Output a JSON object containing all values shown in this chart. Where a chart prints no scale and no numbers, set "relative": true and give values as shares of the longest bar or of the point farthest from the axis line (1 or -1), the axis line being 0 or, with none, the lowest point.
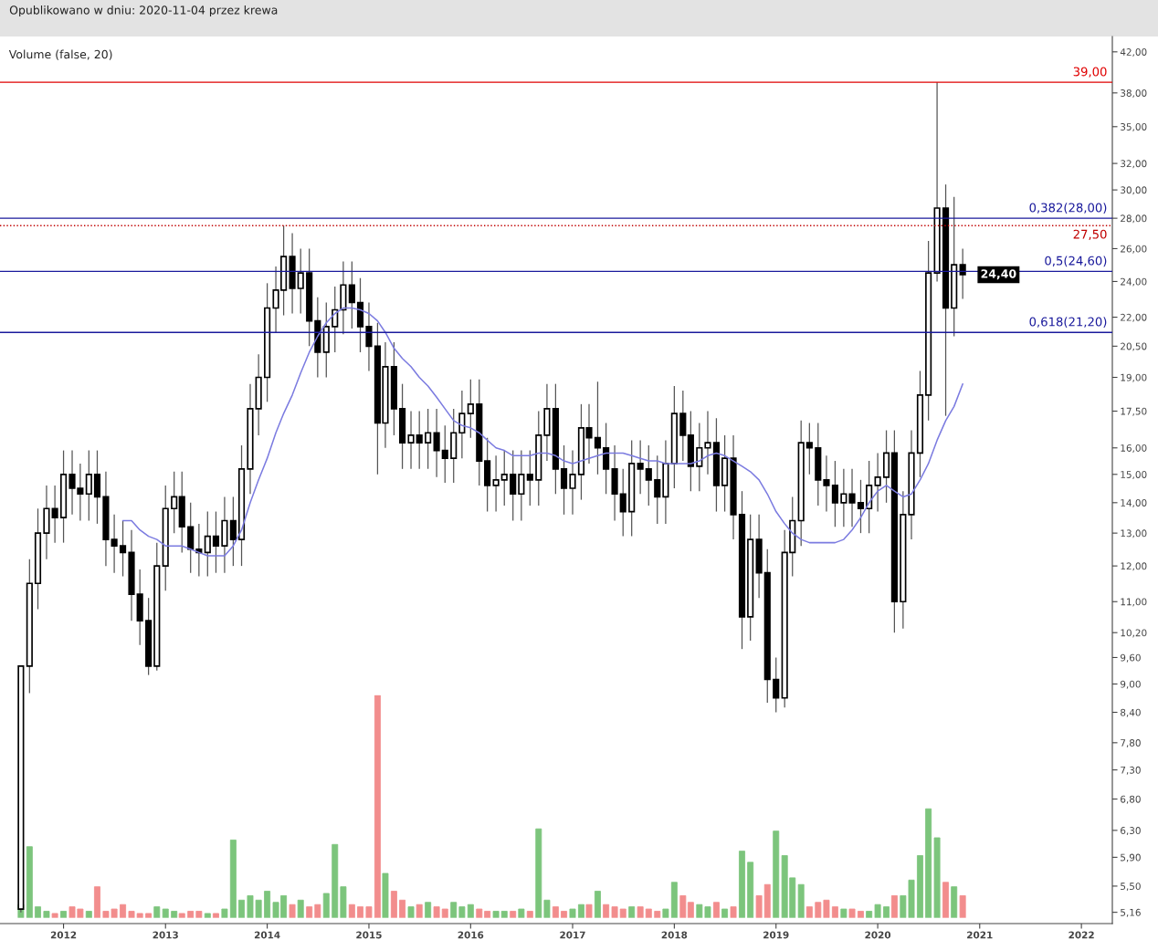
{
  "chart_data": [
    {
      "type": "candlestick",
      "title": "Opublikowano w dniu: 2020-11-04 przez krewa",
      "annotations": [
        "Volume (false, 20)",
        {
          "text": "24,40",
          "x": "2020-11",
          "y": 24.4
        }
      ],
      "x": [
        "2011-08",
        "2011-09",
        "2011-10",
        "2011-11",
        "2011-12",
        "2012-01",
        "2012-02",
        "2012-03",
        "2012-04",
        "2012-05",
        "2012-06",
        "2012-07",
        "2012-08",
        "2012-09",
        "2012-10",
        "2012-11",
        "2012-12",
        "2013-01",
        "2013-02",
        "2013-03",
        "2013-04",
        "2013-05",
        "2013-06",
        "2013-07",
        "2013-08",
        "2013-09",
        "2013-10",
        "2013-11",
        "2013-12",
        "2014-01",
        "2014-02",
        "2014-03",
        "2014-04",
        "2014-05",
        "2014-06",
        "2014-07",
        "2014-08",
        "2014-09",
        "2014-10",
        "2014-11",
        "2014-12",
        "2015-01",
        "2015-02",
        "2015-03",
        "2015-04",
        "2015-05",
        "2015-06",
        "2015-07",
        "2015-08",
        "2015-09",
        "2015-10",
        "2015-11",
        "2015-12",
        "2016-01",
        "2016-02",
        "2016-03",
        "2016-04",
        "2016-05",
        "2016-06",
        "2016-07",
        "2016-08",
        "2016-09",
        "2016-10",
        "2016-11",
        "2016-12",
        "2017-01",
        "2017-02",
        "2017-03",
        "2017-04",
        "2017-05",
        "2017-06",
        "2017-07",
        "2017-08",
        "2017-09",
        "2017-10",
        "2017-11",
        "2017-12",
        "2018-01",
        "2018-02",
        "2018-03",
        "2018-04",
        "2018-05",
        "2018-06",
        "2018-07",
        "2018-08",
        "2018-09",
        "2018-10",
        "2018-11",
        "2018-12",
        "2019-01",
        "2019-02",
        "2019-03",
        "2019-04",
        "2019-05",
        "2019-06",
        "2019-07",
        "2019-08",
        "2019-09",
        "2019-10",
        "2019-11",
        "2019-12",
        "2020-01",
        "2020-02",
        "2020-03",
        "2020-04",
        "2020-05",
        "2020-06",
        "2020-07",
        "2020-08",
        "2020-09",
        "2020-10",
        "2020-11"
      ],
      "ohlc": [
        [
          5.2,
          9.4,
          5.16,
          9.4
        ],
        [
          9.4,
          12.2,
          8.8,
          11.5
        ],
        [
          11.5,
          13.8,
          10.8,
          13.0
        ],
        [
          13.0,
          14.6,
          12.2,
          13.8
        ],
        [
          13.8,
          14.6,
          12.7,
          13.5
        ],
        [
          13.5,
          15.9,
          12.7,
          15.0
        ],
        [
          15.0,
          15.9,
          13.6,
          14.5
        ],
        [
          14.5,
          15.4,
          13.4,
          14.3
        ],
        [
          14.3,
          15.9,
          13.4,
          15.0
        ],
        [
          15.0,
          15.9,
          13.3,
          14.2
        ],
        [
          14.2,
          15.1,
          12.0,
          12.8
        ],
        [
          12.8,
          13.6,
          11.8,
          12.6
        ],
        [
          12.6,
          13.4,
          11.7,
          12.4
        ],
        [
          12.4,
          13.1,
          10.5,
          11.2
        ],
        [
          11.2,
          11.9,
          9.9,
          10.5
        ],
        [
          10.5,
          11.1,
          9.2,
          9.4
        ],
        [
          9.4,
          12.7,
          9.3,
          12.0
        ],
        [
          12.0,
          14.6,
          11.3,
          13.8
        ],
        [
          13.8,
          15.1,
          13.0,
          14.2
        ],
        [
          14.2,
          15.1,
          12.4,
          13.2
        ],
        [
          13.2,
          14.0,
          11.8,
          12.5
        ],
        [
          12.5,
          13.3,
          11.7,
          12.4
        ],
        [
          12.4,
          13.7,
          11.7,
          12.9
        ],
        [
          12.9,
          13.7,
          11.8,
          12.6
        ],
        [
          12.6,
          14.2,
          11.8,
          13.4
        ],
        [
          13.4,
          14.2,
          12.0,
          12.8
        ],
        [
          12.8,
          16.1,
          12.0,
          15.2
        ],
        [
          15.2,
          18.7,
          14.3,
          17.6
        ],
        [
          17.6,
          20.1,
          16.5,
          19.0
        ],
        [
          19.0,
          23.9,
          17.9,
          22.5
        ],
        [
          22.5,
          24.9,
          21.2,
          23.5
        ],
        [
          23.5,
          27.5,
          22.1,
          25.5
        ],
        [
          25.5,
          27.0,
          22.2,
          23.6
        ],
        [
          23.6,
          26.0,
          22.2,
          24.5
        ],
        [
          24.5,
          26.0,
          20.5,
          21.8
        ],
        [
          21.8,
          23.1,
          19.0,
          20.2
        ],
        [
          20.2,
          22.8,
          19.0,
          21.5
        ],
        [
          21.5,
          23.7,
          20.2,
          22.4
        ],
        [
          22.4,
          25.2,
          21.1,
          23.8
        ],
        [
          23.8,
          25.2,
          21.4,
          22.8
        ],
        [
          22.8,
          24.2,
          20.2,
          21.5
        ],
        [
          21.5,
          22.8,
          19.3,
          20.5
        ],
        [
          20.5,
          21.7,
          15.0,
          17.0
        ],
        [
          17.0,
          20.7,
          16.0,
          19.5
        ],
        [
          19.5,
          20.7,
          16.5,
          17.6
        ],
        [
          17.6,
          18.7,
          15.2,
          16.2
        ],
        [
          16.2,
          17.5,
          15.2,
          16.5
        ],
        [
          16.5,
          17.5,
          15.2,
          16.2
        ],
        [
          16.2,
          17.6,
          15.2,
          16.6
        ],
        [
          16.6,
          17.6,
          14.9,
          15.9
        ],
        [
          15.9,
          16.9,
          14.7,
          15.6
        ],
        [
          15.6,
          17.6,
          14.7,
          16.6
        ],
        [
          16.6,
          18.4,
          15.6,
          17.4
        ],
        [
          17.4,
          18.9,
          16.4,
          17.8
        ],
        [
          17.8,
          18.9,
          14.6,
          15.5
        ],
        [
          15.5,
          16.4,
          13.7,
          14.6
        ],
        [
          14.6,
          15.7,
          13.7,
          14.8
        ],
        [
          14.8,
          15.9,
          13.9,
          15.0
        ],
        [
          15.0,
          15.9,
          13.4,
          14.3
        ],
        [
          14.3,
          15.9,
          13.4,
          15.0
        ],
        [
          15.0,
          15.9,
          13.9,
          14.8
        ],
        [
          14.8,
          17.5,
          13.9,
          16.5
        ],
        [
          16.5,
          18.7,
          15.5,
          17.6
        ],
        [
          17.6,
          18.7,
          14.3,
          15.2
        ],
        [
          15.2,
          16.1,
          13.6,
          14.5
        ],
        [
          14.5,
          15.9,
          13.6,
          15.0
        ],
        [
          15.0,
          17.8,
          14.1,
          16.8
        ],
        [
          16.8,
          17.8,
          15.4,
          16.4
        ],
        [
          16.4,
          18.8,
          15.0,
          16.0
        ],
        [
          16.0,
          17.0,
          14.3,
          15.2
        ],
        [
          15.2,
          16.1,
          13.4,
          14.3
        ],
        [
          14.3,
          15.2,
          12.9,
          13.7
        ],
        [
          13.7,
          16.3,
          12.9,
          15.4
        ],
        [
          15.4,
          16.3,
          14.3,
          15.2
        ],
        [
          15.2,
          16.1,
          13.9,
          14.8
        ],
        [
          14.8,
          15.7,
          13.3,
          14.2
        ],
        [
          14.2,
          16.3,
          13.3,
          15.4
        ],
        [
          15.4,
          18.6,
          14.5,
          17.4
        ],
        [
          17.4,
          18.4,
          15.5,
          16.5
        ],
        [
          16.5,
          17.5,
          14.4,
          15.3
        ],
        [
          15.3,
          17.0,
          14.4,
          16.0
        ],
        [
          16.0,
          17.5,
          15.0,
          16.2
        ],
        [
          16.2,
          17.2,
          13.7,
          14.6
        ],
        [
          14.6,
          16.5,
          13.7,
          15.6
        ],
        [
          15.6,
          16.5,
          12.8,
          13.6
        ],
        [
          13.6,
          14.4,
          9.8,
          10.6
        ],
        [
          10.6,
          13.6,
          10.0,
          12.8
        ],
        [
          12.8,
          13.6,
          11.1,
          11.8
        ],
        [
          11.8,
          12.5,
          8.6,
          9.1
        ],
        [
          9.1,
          9.6,
          8.4,
          8.7
        ],
        [
          8.7,
          13.1,
          8.5,
          12.4
        ],
        [
          12.4,
          14.2,
          11.7,
          13.4
        ],
        [
          13.4,
          17.1,
          12.6,
          16.2
        ],
        [
          16.2,
          17.0,
          15.0,
          16.0
        ],
        [
          16.0,
          17.0,
          13.9,
          14.8
        ],
        [
          14.8,
          15.7,
          13.7,
          14.6
        ],
        [
          14.6,
          15.5,
          13.2,
          14.0
        ],
        [
          14.0,
          15.2,
          13.2,
          14.3
        ],
        [
          14.3,
          15.2,
          13.2,
          14.0
        ],
        [
          14.0,
          14.8,
          13.0,
          13.8
        ],
        [
          13.8,
          15.5,
          13.0,
          14.6
        ],
        [
          14.6,
          15.8,
          13.7,
          14.9
        ],
        [
          14.9,
          16.7,
          14.0,
          15.8
        ],
        [
          15.8,
          16.7,
          10.2,
          11.0
        ],
        [
          11.0,
          14.4,
          10.3,
          13.6
        ],
        [
          13.6,
          16.7,
          12.8,
          15.8
        ],
        [
          15.8,
          19.3,
          14.9,
          18.2
        ],
        [
          18.2,
          26.5,
          17.1,
          24.5
        ],
        [
          24.5,
          39.0,
          24.0,
          28.7
        ],
        [
          28.7,
          30.4,
          17.3,
          22.5
        ],
        [
          22.5,
          29.5,
          21.0,
          25.0
        ],
        [
          25.0,
          26.0,
          23.0,
          24.4
        ]
      ],
      "series": [
        {
          "type": "line",
          "color": "#7b7be0",
          "x": [
            "2012-08",
            "2012-09",
            "2012-10",
            "2012-11",
            "2012-12",
            "2013-01",
            "2013-02",
            "2013-03",
            "2013-04",
            "2013-05",
            "2013-06",
            "2013-07",
            "2013-08",
            "2013-09",
            "2013-10",
            "2013-11",
            "2013-12",
            "2014-01",
            "2014-02",
            "2014-03",
            "2014-04",
            "2014-05",
            "2014-06",
            "2014-07",
            "2014-08",
            "2014-09",
            "2014-10",
            "2014-11",
            "2014-12",
            "2015-01",
            "2015-02",
            "2015-03",
            "2015-04",
            "2015-05",
            "2015-06",
            "2015-07",
            "2015-08",
            "2015-09",
            "2015-10",
            "2015-11",
            "2015-12",
            "2016-01",
            "2016-02",
            "2016-03",
            "2016-04",
            "2016-05",
            "2016-06",
            "2016-07",
            "2016-08",
            "2016-09",
            "2016-10",
            "2016-11",
            "2016-12",
            "2017-01",
            "2017-02",
            "2017-03",
            "2017-04",
            "2017-05",
            "2017-06",
            "2017-07",
            "2017-08",
            "2017-09",
            "2017-10",
            "2017-11",
            "2017-12",
            "2018-01",
            "2018-02",
            "2018-03",
            "2018-04",
            "2018-05",
            "2018-06",
            "2018-07",
            "2018-08",
            "2018-09",
            "2018-10",
            "2018-11",
            "2018-12",
            "2019-01",
            "2019-02",
            "2019-03",
            "2019-04",
            "2019-05",
            "2019-06",
            "2019-07",
            "2019-08",
            "2019-09",
            "2019-10",
            "2019-11",
            "2019-12",
            "2020-01",
            "2020-02",
            "2020-03",
            "2020-04",
            "2020-05",
            "2020-06",
            "2020-07",
            "2020-08",
            "2020-09",
            "2020-10",
            "2020-11"
          ],
          "values": [
            13.4,
            13.4,
            13.1,
            12.9,
            12.8,
            12.6,
            12.6,
            12.6,
            12.5,
            12.4,
            12.3,
            12.3,
            12.3,
            12.6,
            13.1,
            14.0,
            14.8,
            15.6,
            16.6,
            17.4,
            18.2,
            19.2,
            20.2,
            21.0,
            21.7,
            22.2,
            22.5,
            22.5,
            22.4,
            22.2,
            21.8,
            21.2,
            20.4,
            19.9,
            19.5,
            19.0,
            18.6,
            18.1,
            17.6,
            17.1,
            16.9,
            16.8,
            16.6,
            16.3,
            16.0,
            15.9,
            15.7,
            15.7,
            15.7,
            15.8,
            15.8,
            15.7,
            15.5,
            15.4,
            15.5,
            15.6,
            15.7,
            15.8,
            15.8,
            15.8,
            15.7,
            15.6,
            15.5,
            15.5,
            15.4,
            15.4,
            15.4,
            15.4,
            15.5,
            15.7,
            15.8,
            15.7,
            15.5,
            15.3,
            15.1,
            14.8,
            14.3,
            13.7,
            13.3,
            13.0,
            12.8,
            12.7,
            12.7,
            12.7,
            12.7,
            12.8,
            13.1,
            13.5,
            14.0,
            14.4,
            14.6,
            14.4,
            14.2,
            14.3,
            14.8,
            15.4,
            16.3,
            17.1,
            17.7,
            18.7
          ]
        }
      ],
      "log": "y",
      "grid": false,
      "ylim": [
        5.02,
        43.6
      ],
      "yticks": [
        {
          "value": 5.16,
          "label": "5,16"
        },
        {
          "value": 5.5,
          "label": "5,50"
        },
        {
          "value": 5.9,
          "label": "5,90"
        },
        {
          "value": 6.3,
          "label": "6,30"
        },
        {
          "value": 6.8,
          "label": "6,80"
        },
        {
          "value": 7.3,
          "label": "7,30"
        },
        {
          "value": 7.8,
          "label": "7,80"
        },
        {
          "value": 8.4,
          "label": "8,40"
        },
        {
          "value": 9,
          "label": "9,00"
        },
        {
          "value": 9.6,
          "label": "9,60"
        },
        {
          "value": 10.2,
          "label": "10,20"
        },
        {
          "value": 11,
          "label": "11,00"
        },
        {
          "value": 12,
          "label": "12,00"
        },
        {
          "value": 13,
          "label": "13,00"
        },
        {
          "value": 14,
          "label": "14,00"
        },
        {
          "value": 15,
          "label": "15,00"
        },
        {
          "value": 16,
          "label": "16,00"
        },
        {
          "value": 17.5,
          "label": "17,50"
        },
        {
          "value": 19,
          "label": "19,00"
        },
        {
          "value": 20.5,
          "label": "20,50"
        },
        {
          "value": 22,
          "label": "22,00"
        },
        {
          "value": 24,
          "label": "24,00"
        },
        {
          "value": 26,
          "label": "26,00"
        },
        {
          "value": 28,
          "label": "28,00"
        },
        {
          "value": 30,
          "label": "30,00"
        },
        {
          "value": 32,
          "label": "32,00"
        },
        {
          "value": 35,
          "label": "35,00"
        },
        {
          "value": 38,
          "label": "38,00"
        },
        {
          "value": 42,
          "label": "42,00"
        }
      ],
      "xlim": [
        "2011-05-18",
        "2022-04-22"
      ],
      "xticks": [
        "2012",
        "2013",
        "2014",
        "2015",
        "2016",
        "2017",
        "2018",
        "2019",
        "2020",
        "2021",
        "2022"
      ],
      "ref_lines": [
        {
          "axis": "y",
          "value": 39,
          "label": "39,00",
          "color": "#e00000",
          "line_style": "solid"
        },
        {
          "axis": "y",
          "value": 27.5,
          "label": "27,50",
          "color": "#c00000",
          "line_style": "dotted"
        },
        {
          "axis": "y",
          "value": 28,
          "label": "0,382(28,00)",
          "color": "#1a1a9c",
          "line_style": "solid"
        },
        {
          "axis": "y",
          "value": 24.6,
          "label": "0,5(24,60)",
          "color": "#1a1a9c",
          "line_style": "solid"
        },
        {
          "axis": "y",
          "value": 21.2,
          "label": "0,618(21,20)",
          "color": "#1a1a9c",
          "line_style": "solid"
        }
      ]
    },
    {
      "type": "bar",
      "relative": true,
      "xlim": [
        "2011-05-18",
        "2022-04-22"
      ],
      "x": [
        "2011-08",
        "2011-09",
        "2011-10",
        "2011-11",
        "2011-12",
        "2012-01",
        "2012-02",
        "2012-03",
        "2012-04",
        "2012-05",
        "2012-06",
        "2012-07",
        "2012-08",
        "2012-09",
        "2012-10",
        "2012-11",
        "2012-12",
        "2013-01",
        "2013-02",
        "2013-03",
        "2013-04",
        "2013-05",
        "2013-06",
        "2013-07",
        "2013-08",
        "2013-09",
        "2013-10",
        "2013-11",
        "2013-12",
        "2014-01",
        "2014-02",
        "2014-03",
        "2014-04",
        "2014-05",
        "2014-06",
        "2014-07",
        "2014-08",
        "2014-09",
        "2014-10",
        "2014-11",
        "2014-12",
        "2015-01",
        "2015-02",
        "2015-03",
        "2015-04",
        "2015-05",
        "2015-06",
        "2015-07",
        "2015-08",
        "2015-09",
        "2015-10",
        "2015-11",
        "2015-12",
        "2016-01",
        "2016-02",
        "2016-03",
        "2016-04",
        "2016-05",
        "2016-06",
        "2016-07",
        "2016-08",
        "2016-09",
        "2016-10",
        "2016-11",
        "2016-12",
        "2017-01",
        "2017-02",
        "2017-03",
        "2017-04",
        "2017-05",
        "2017-06",
        "2017-07",
        "2017-08",
        "2017-09",
        "2017-10",
        "2017-11",
        "2017-12",
        "2018-01",
        "2018-02",
        "2018-03",
        "2018-04",
        "2018-05",
        "2018-06",
        "2018-07",
        "2018-08",
        "2018-09",
        "2018-10",
        "2018-11",
        "2018-12",
        "2019-01",
        "2019-02",
        "2019-03",
        "2019-04",
        "2019-05",
        "2019-06",
        "2019-07",
        "2019-08",
        "2019-09",
        "2019-10",
        "2019-11",
        "2019-12",
        "2020-01",
        "2020-02",
        "2020-03",
        "2020-04",
        "2020-05",
        "2020-06",
        "2020-07",
        "2020-08",
        "2020-09",
        "2020-10",
        "2020-11"
      ],
      "values": [
        0.06,
        0.32,
        0.05,
        0.03,
        0.02,
        0.03,
        0.05,
        0.04,
        0.03,
        0.14,
        0.03,
        0.04,
        0.06,
        0.03,
        0.02,
        0.02,
        0.05,
        0.04,
        0.03,
        0.02,
        0.03,
        0.03,
        0.02,
        0.02,
        0.04,
        0.35,
        0.08,
        0.1,
        0.08,
        0.12,
        0.07,
        0.1,
        0.06,
        0.08,
        0.05,
        0.06,
        0.11,
        0.33,
        0.14,
        0.06,
        0.05,
        0.05,
        1.0,
        0.2,
        0.12,
        0.08,
        0.05,
        0.06,
        0.07,
        0.05,
        0.04,
        0.07,
        0.05,
        0.06,
        0.04,
        0.03,
        0.03,
        0.03,
        0.03,
        0.04,
        0.03,
        0.4,
        0.08,
        0.05,
        0.03,
        0.04,
        0.06,
        0.06,
        0.12,
        0.06,
        0.05,
        0.04,
        0.05,
        0.05,
        0.04,
        0.03,
        0.04,
        0.16,
        0.1,
        0.07,
        0.06,
        0.05,
        0.07,
        0.04,
        0.05,
        0.3,
        0.25,
        0.1,
        0.15,
        0.39,
        0.28,
        0.18,
        0.15,
        0.05,
        0.07,
        0.08,
        0.05,
        0.04,
        0.04,
        0.03,
        0.03,
        0.06,
        0.05,
        0.1,
        0.1,
        0.17,
        0.28,
        0.49,
        0.36,
        0.16,
        0.14,
        0.1
      ],
      "colors": [
        "#66bb66",
        "#66bb66",
        "#66bb66",
        "#66bb66",
        "#f07a7a",
        "#66bb66",
        "#f07a7a",
        "#f07a7a",
        "#66bb66",
        "#f07a7a",
        "#f07a7a",
        "#f07a7a",
        "#f07a7a",
        "#f07a7a",
        "#f07a7a",
        "#f07a7a",
        "#66bb66",
        "#66bb66",
        "#66bb66",
        "#f07a7a",
        "#f07a7a",
        "#f07a7a",
        "#66bb66",
        "#f07a7a",
        "#66bb66",
        "#66bb66",
        "#66bb66",
        "#66bb66",
        "#66bb66",
        "#66bb66",
        "#66bb66",
        "#66bb66",
        "#f07a7a",
        "#66bb66",
        "#f07a7a",
        "#f07a7a",
        "#66bb66",
        "#66bb66",
        "#66bb66",
        "#f07a7a",
        "#f07a7a",
        "#f07a7a",
        "#f07a7a",
        "#66bb66",
        "#f07a7a",
        "#f07a7a",
        "#66bb66",
        "#f07a7a",
        "#66bb66",
        "#f07a7a",
        "#f07a7a",
        "#66bb66",
        "#66bb66",
        "#66bb66",
        "#f07a7a",
        "#f07a7a",
        "#66bb66",
        "#66bb66",
        "#f07a7a",
        "#66bb66",
        "#f07a7a",
        "#66bb66",
        "#66bb66",
        "#f07a7a",
        "#f07a7a",
        "#66bb66",
        "#66bb66",
        "#f07a7a",
        "#66bb66",
        "#f07a7a",
        "#f07a7a",
        "#f07a7a",
        "#66bb66",
        "#f07a7a",
        "#f07a7a",
        "#f07a7a",
        "#66bb66",
        "#66bb66",
        "#f07a7a",
        "#f07a7a",
        "#66bb66",
        "#66bb66",
        "#f07a7a",
        "#66bb66",
        "#f07a7a",
        "#66bb66",
        "#66bb66",
        "#f07a7a",
        "#f07a7a",
        "#66bb66",
        "#66bb66",
        "#66bb66",
        "#66bb66",
        "#f07a7a",
        "#f07a7a",
        "#f07a7a",
        "#f07a7a",
        "#66bb66",
        "#f07a7a",
        "#f07a7a",
        "#66bb66",
        "#66bb66",
        "#66bb66",
        "#f07a7a",
        "#66bb66",
        "#66bb66",
        "#66bb66",
        "#66bb66",
        "#66bb66",
        "#f07a7a",
        "#66bb66",
        "#f07a7a"
      ]
    }
  ]
}
